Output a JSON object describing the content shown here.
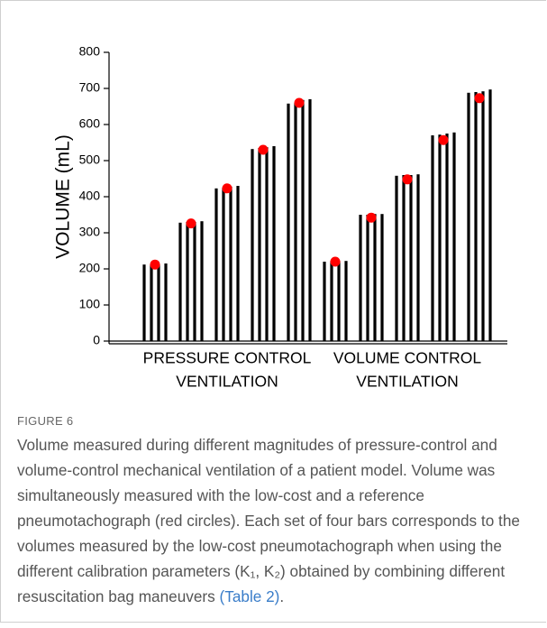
{
  "chart_data": {
    "type": "grouped-bar",
    "y_label": "VOLUME (mL)",
    "categories": [
      null,
      null,
      null,
      null,
      null,
      null,
      null,
      null,
      null,
      null
    ],
    "group_labels": [
      [
        "PRESSURE CONTROL",
        "VENTILATION"
      ],
      [
        "VOLUME CONTROL",
        "VENTILATION"
      ]
    ],
    "group_spans": [
      5,
      5
    ],
    "series": [
      {
        "color": "#000000",
        "values": [
          212,
          328,
          423,
          532,
          658,
          220,
          350,
          458,
          570,
          688
        ]
      },
      {
        "color": "#000000",
        "values": [
          213,
          330,
          425,
          535,
          660,
          222,
          350,
          460,
          572,
          690
        ]
      },
      {
        "color": "#000000",
        "values": [
          213,
          330,
          428,
          537,
          668,
          222,
          352,
          460,
          575,
          692
        ]
      },
      {
        "color": "#000000",
        "values": [
          215,
          332,
          430,
          540,
          670,
          222,
          352,
          462,
          578,
          697
        ]
      }
    ],
    "reference": {
      "type": "scatter",
      "color": "#ff0000",
      "values": [
        212,
        326,
        423,
        530,
        660,
        220,
        342,
        448,
        557,
        673
      ]
    },
    "ylim": [
      0,
      800
    ],
    "yticks": [
      0,
      100,
      200,
      300,
      400,
      500,
      600,
      700,
      800
    ],
    "grid": false
  },
  "caption": {
    "label": "FIGURE 6",
    "text": "Volume measured during different magnitudes of pressure-control and volume-control mechanical ventilation of a patient model. Volume was simultaneously measured with the low-cost and a reference pneumotachograph (red circles). Each set of four bars corresponds to the volumes measured by the low-cost pneumotachograph when using the different calibration parameters (K₁, K₂) obtained by combining different resuscitation bag maneuvers ",
    "link": "(Table 2)",
    "end": "."
  }
}
